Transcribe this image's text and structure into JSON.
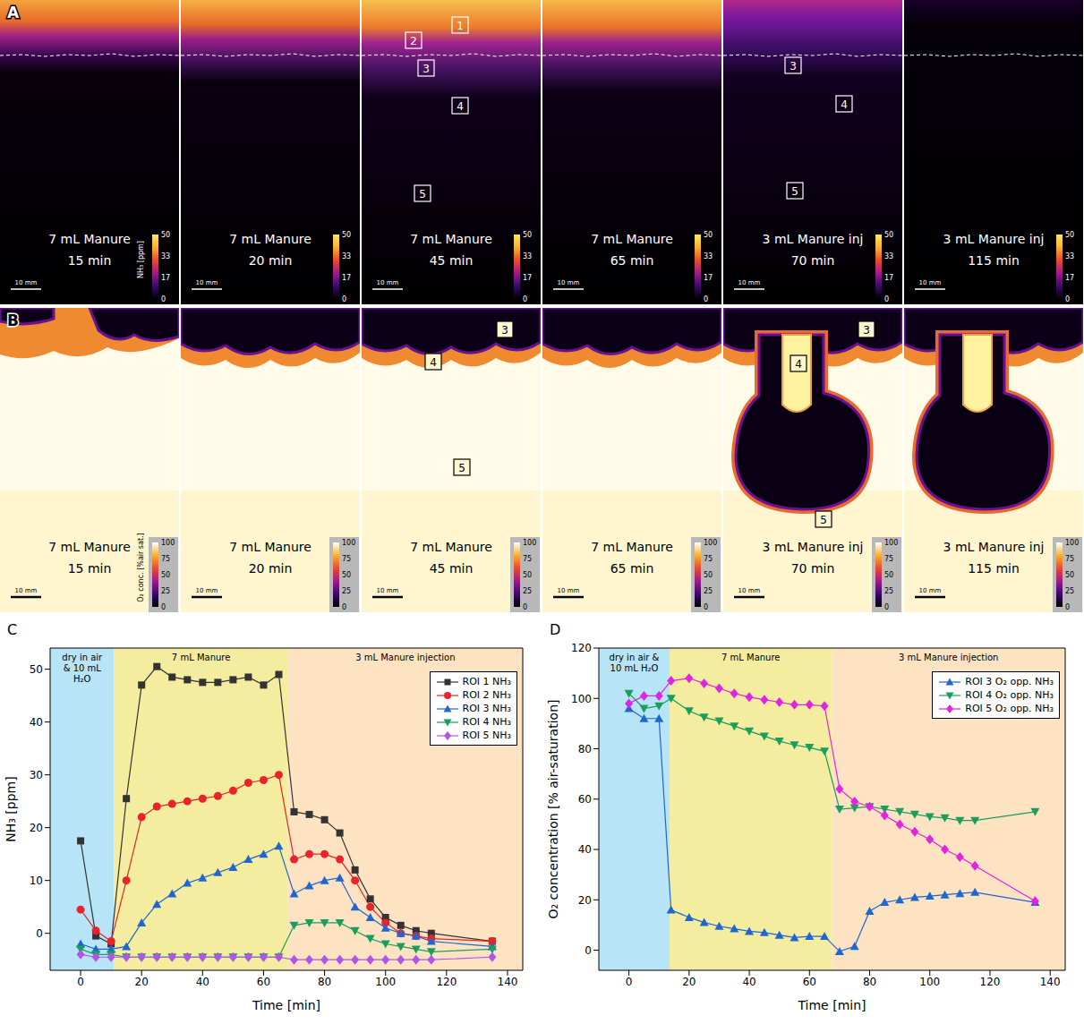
{
  "image_panels": [
    {
      "panel": "A",
      "colorbar": {
        "label": "NH₃ [ppm]",
        "range": [
          0,
          50
        ],
        "ticks": [
          0,
          17,
          33,
          50
        ]
      },
      "scale_bar": "10 mm",
      "frames": [
        {
          "treatment": "7 mL Manure",
          "time": "15 min",
          "rois": []
        },
        {
          "treatment": "7 mL Manure",
          "time": "20 min",
          "rois": []
        },
        {
          "treatment": "7 mL Manure",
          "time": "45 min",
          "rois": [
            "1",
            "2",
            "3",
            "4",
            "5"
          ]
        },
        {
          "treatment": "7 mL Manure",
          "time": "65 min",
          "rois": []
        },
        {
          "treatment": "3 mL Manure inj",
          "time": "70 min",
          "rois": [
            "3",
            "4",
            "5"
          ]
        },
        {
          "treatment": "3 mL Manure inj",
          "time": "115 min",
          "rois": []
        }
      ]
    },
    {
      "panel": "B",
      "colorbar": {
        "label": "O₂ conc. [%air sat.]",
        "range": [
          0,
          100
        ],
        "ticks": [
          0,
          25,
          50,
          75,
          100
        ]
      },
      "scale_bar": "10 mm",
      "frames": [
        {
          "treatment": "7 mL Manure",
          "time": "15 min",
          "rois": []
        },
        {
          "treatment": "7 mL Manure",
          "time": "20 min",
          "rois": []
        },
        {
          "treatment": "7 mL Manure",
          "time": "45 min",
          "rois": [
            "3",
            "4",
            "5"
          ]
        },
        {
          "treatment": "7 mL Manure",
          "time": "65 min",
          "rois": []
        },
        {
          "treatment": "3 mL Manure inj",
          "time": "70 min",
          "rois": [
            "3",
            "4",
            "5"
          ]
        },
        {
          "treatment": "3 mL Manure inj",
          "time": "115 min",
          "rois": []
        }
      ]
    }
  ],
  "chart_data": [
    {
      "panel": "C",
      "type": "line",
      "x_label": "Time [min]",
      "y_label": "NH₃ [ppm]",
      "x": [
        0,
        5,
        10,
        15,
        20,
        25,
        30,
        35,
        40,
        45,
        50,
        55,
        60,
        65,
        70,
        75,
        80,
        85,
        90,
        95,
        100,
        105,
        110,
        115,
        135
      ],
      "xlim": [
        -10,
        145
      ],
      "xticks": [
        0,
        20,
        40,
        60,
        80,
        100,
        120,
        140
      ],
      "ylim": [
        -7,
        54
      ],
      "yticks": [
        0,
        10,
        20,
        30,
        40,
        50
      ],
      "grid": false,
      "legend": "upper right",
      "regions": [
        {
          "label": "dry in air & 10 mL H₂O",
          "x_start": -10,
          "x_end": 11,
          "color": "#b8e4f8"
        },
        {
          "label": "7 mL Manure",
          "x_start": 11,
          "x_end": 68,
          "color": "#f4ec9e"
        },
        {
          "label": "3 mL Manure injection",
          "x_start": 68,
          "x_end": 145,
          "color": "#fde3c2"
        }
      ],
      "series": [
        {
          "name": "ROI 1 NH₃",
          "color": "#333333",
          "marker": "square",
          "values": [
            17.5,
            -0.5,
            -2,
            25.5,
            47,
            50.5,
            48.5,
            48,
            47.5,
            47.5,
            48,
            48.5,
            47,
            49,
            23,
            22.5,
            21.5,
            19,
            12,
            6.5,
            3,
            1.5,
            0.5,
            0,
            -1.5
          ]
        },
        {
          "name": "ROI 2 NH₃",
          "color": "#e8242a",
          "marker": "circle",
          "values": [
            4.5,
            0.5,
            -1.5,
            10,
            22,
            24,
            24.5,
            25,
            25.5,
            26,
            27,
            28.5,
            29,
            30,
            14,
            15,
            15,
            14,
            10,
            5,
            2,
            0,
            -0.5,
            -1,
            -1.5
          ]
        },
        {
          "name": "ROI 3 NH₃",
          "color": "#1f66d1",
          "marker": "triangle",
          "values": [
            -2,
            -3,
            -3,
            -2.5,
            2,
            5.5,
            7.5,
            9.5,
            10.5,
            11.5,
            12.5,
            14,
            15,
            16.5,
            7.5,
            9,
            10,
            10.5,
            5,
            3,
            1,
            0,
            -0.5,
            -1.5,
            -2.5
          ]
        },
        {
          "name": "ROI 4 NH₃",
          "color": "#1a9e5c",
          "marker": "triangle_down",
          "values": [
            -3,
            -4,
            -4,
            -4.5,
            -4.5,
            -4.5,
            -4.5,
            -4.5,
            -4.5,
            -4.5,
            -4.5,
            -4.5,
            -4.5,
            -4.5,
            1.5,
            2,
            2,
            2,
            0.5,
            -1,
            -2,
            -2.5,
            -3,
            -3.5,
            -3
          ]
        },
        {
          "name": "ROI 5 NH₃",
          "color": "#b055e6",
          "marker": "diamond",
          "values": [
            -4,
            -4.5,
            -4.5,
            -4.5,
            -4.5,
            -4.5,
            -4.5,
            -4.5,
            -4.5,
            -4.5,
            -4.5,
            -4.5,
            -4.5,
            -4.5,
            -5,
            -5,
            -5,
            -5,
            -5,
            -5,
            -5,
            -5,
            -5,
            -5,
            -4.5
          ]
        }
      ]
    },
    {
      "panel": "D",
      "type": "line",
      "x_label": "Time [min]",
      "y_label": "O₂ concentration [% air-saturation]",
      "x": [
        0,
        5,
        10,
        14,
        20,
        25,
        30,
        35,
        40,
        45,
        50,
        55,
        60,
        65,
        70,
        75,
        80,
        85,
        90,
        95,
        100,
        105,
        110,
        115,
        135
      ],
      "xlim": [
        -10,
        145
      ],
      "xticks": [
        0,
        20,
        40,
        60,
        80,
        100,
        120,
        140
      ],
      "ylim": [
        -8,
        120
      ],
      "yticks": [
        0,
        20,
        40,
        60,
        80,
        100,
        120
      ],
      "grid": false,
      "legend": "upper right",
      "regions": [
        {
          "label": "dry in air & 10 mL H₂O",
          "x_start": -10,
          "x_end": 13.5,
          "color": "#b8e4f8"
        },
        {
          "label": "7 mL Manure",
          "x_start": 13.5,
          "x_end": 67.5,
          "color": "#f4ec9e"
        },
        {
          "label": "3 mL Manure injection",
          "x_start": 67.5,
          "x_end": 145,
          "color": "#fde3c2"
        }
      ],
      "series": [
        {
          "name": "ROI 3 O₂ opp. NH₃",
          "color": "#1f66d1",
          "marker": "triangle",
          "values": [
            96,
            92,
            92,
            16,
            13,
            11,
            9.5,
            8.5,
            7.5,
            7,
            6,
            5,
            5.5,
            5.5,
            -0.5,
            1.5,
            15.5,
            19,
            20,
            21,
            21.5,
            22,
            22.5,
            23,
            19
          ]
        },
        {
          "name": "ROI 4 O₂ opp. NH₃",
          "color": "#1a9e5c",
          "marker": "triangle_down",
          "values": [
            102,
            96,
            97,
            100,
            95,
            92.5,
            91,
            89,
            87,
            85,
            83,
            81.5,
            80.5,
            79,
            56,
            56.5,
            57,
            56,
            55,
            54,
            53,
            52.5,
            51.5,
            51.5,
            55
          ]
        },
        {
          "name": "ROI 5 O₂ opp. NH₃",
          "color": "#e024e0",
          "marker": "diamond",
          "values": [
            98,
            101,
            101,
            107,
            108,
            106,
            104,
            102,
            100.5,
            99.5,
            98.5,
            97.5,
            97.5,
            97,
            64,
            59,
            57,
            53.5,
            50,
            47,
            44,
            40,
            37,
            33.5,
            19.5
          ]
        }
      ]
    }
  ]
}
